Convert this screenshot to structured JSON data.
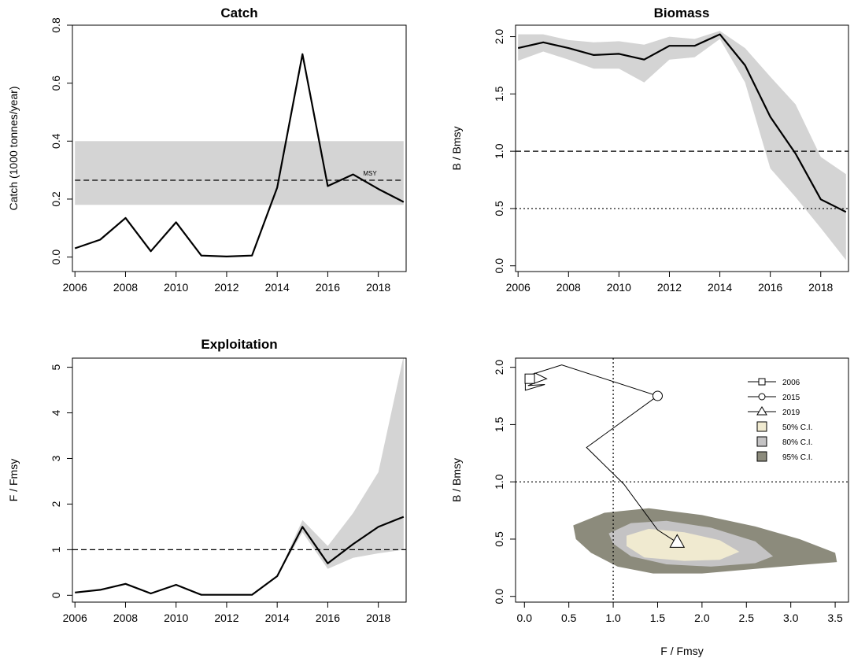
{
  "chart_data": [
    {
      "type": "line",
      "title": "Catch",
      "xlabel": "",
      "ylabel": "Catch (1000 tonnes/year)",
      "xlim": [
        2005.9,
        2019.1
      ],
      "ylim": [
        -0.05,
        0.8
      ],
      "xticks": [
        2006,
        2008,
        2010,
        2012,
        2014,
        2016,
        2018
      ],
      "yticks": [
        "0.0",
        "0.2",
        "0.4",
        "0.6",
        "0.8"
      ],
      "x": [
        2006,
        2007,
        2008,
        2009,
        2010,
        2011,
        2012,
        2013,
        2014,
        2015,
        2016,
        2017,
        2018,
        2019
      ],
      "values": [
        0.03,
        0.06,
        0.135,
        0.02,
        0.12,
        0.005,
        0.002,
        0.005,
        0.24,
        0.7,
        0.245,
        0.285,
        0.235,
        0.19
      ],
      "msy": {
        "label": "MSY",
        "value": 0.265,
        "lower": 0.18,
        "upper": 0.4,
        "label_x": 2017.4
      }
    },
    {
      "type": "line",
      "title": "Biomass",
      "xlabel": "",
      "ylabel": "B / Bmsy",
      "xlim": [
        2005.9,
        2019.1
      ],
      "ylim": [
        -0.05,
        2.1
      ],
      "xticks": [
        2006,
        2008,
        2010,
        2012,
        2014,
        2016,
        2018
      ],
      "yticks": [
        "0.0",
        "0.5",
        "1.0",
        "1.5",
        "2.0"
      ],
      "x": [
        2006,
        2007,
        2008,
        2009,
        2010,
        2011,
        2012,
        2013,
        2014,
        2015,
        2016,
        2017,
        2018,
        2019
      ],
      "values": [
        1.9,
        1.95,
        1.9,
        1.84,
        1.85,
        1.8,
        1.92,
        1.92,
        2.02,
        1.75,
        1.3,
        0.98,
        0.58,
        0.47
      ],
      "ci_lower": [
        1.79,
        1.87,
        1.8,
        1.72,
        1.72,
        1.6,
        1.8,
        1.82,
        1.98,
        1.6,
        0.85,
        0.6,
        0.33,
        0.05
      ],
      "ci_upper": [
        2.02,
        2.02,
        1.97,
        1.95,
        1.96,
        1.93,
        2.0,
        1.98,
        2.05,
        1.9,
        1.65,
        1.41,
        0.95,
        0.8
      ],
      "hlines": [
        {
          "value": 1.0,
          "style": "dashed"
        },
        {
          "value": 0.5,
          "style": "dotted"
        }
      ]
    },
    {
      "type": "line",
      "title": "Exploitation",
      "xlabel": "",
      "ylabel": "F / Fmsy",
      "xlim": [
        2005.9,
        2019.1
      ],
      "ylim": [
        -0.15,
        5.2
      ],
      "xticks": [
        2006,
        2008,
        2010,
        2012,
        2014,
        2016,
        2018
      ],
      "yticks": [
        "0",
        "1",
        "2",
        "3",
        "4",
        "5"
      ],
      "x": [
        2006,
        2007,
        2008,
        2009,
        2010,
        2011,
        2012,
        2013,
        2014,
        2015,
        2016,
        2017,
        2018,
        2019
      ],
      "values": [
        0.06,
        0.12,
        0.25,
        0.04,
        0.23,
        0.01,
        0.01,
        0.01,
        0.42,
        1.5,
        0.7,
        1.12,
        1.5,
        1.72
      ],
      "ci_lower": [
        0.06,
        0.12,
        0.25,
        0.04,
        0.23,
        0.01,
        0.01,
        0.01,
        0.42,
        1.38,
        0.58,
        0.82,
        0.92,
        1.0
      ],
      "ci_upper": [
        0.06,
        0.12,
        0.25,
        0.04,
        0.23,
        0.01,
        0.01,
        0.01,
        0.42,
        1.65,
        1.08,
        1.8,
        2.7,
        5.25
      ],
      "hlines": [
        {
          "value": 1.0,
          "style": "dashed"
        }
      ]
    },
    {
      "type": "scatter",
      "title": "",
      "xlabel": "F / Fmsy",
      "ylabel": "B / Bmsy",
      "xlim": [
        -0.1,
        3.65
      ],
      "ylim": [
        -0.05,
        2.08
      ],
      "xticks": [
        "0.0",
        "0.5",
        "1.0",
        "1.5",
        "2.0",
        "2.5",
        "3.0",
        "3.5"
      ],
      "yticks": [
        "0.0",
        "0.5",
        "1.0",
        "1.5",
        "2.0"
      ],
      "trajectory": {
        "f": [
          0.06,
          0.12,
          0.25,
          0.04,
          0.23,
          0.01,
          0.01,
          0.01,
          0.42,
          1.5,
          0.7,
          1.12,
          1.5,
          1.72
        ],
        "b": [
          1.9,
          1.95,
          1.9,
          1.84,
          1.85,
          1.8,
          1.92,
          1.92,
          2.02,
          1.75,
          1.3,
          0.98,
          0.58,
          0.47
        ]
      },
      "markers": [
        {
          "label": "2006",
          "shape": "square",
          "f": 0.06,
          "b": 1.9
        },
        {
          "label": "2015",
          "shape": "circle",
          "f": 1.5,
          "b": 1.75
        },
        {
          "label": "2019",
          "shape": "triangle",
          "f": 1.72,
          "b": 0.47
        }
      ],
      "reference_lines": {
        "vline": 1.0,
        "hline": 1.0
      },
      "ci_regions": [
        {
          "label": "95% C.I.",
          "color": "#8c8b7c",
          "f": [
            0.55,
            0.9,
            1.4,
            2.0,
            2.6,
            3.1,
            3.5,
            3.52,
            3.2,
            2.6,
            2.0,
            1.45,
            1.05,
            0.75,
            0.58
          ],
          "b": [
            0.62,
            0.73,
            0.77,
            0.71,
            0.61,
            0.5,
            0.38,
            0.3,
            0.28,
            0.24,
            0.2,
            0.2,
            0.26,
            0.38,
            0.5
          ]
        },
        {
          "label": "80% C.I.",
          "color": "#c4c3c4",
          "f": [
            0.95,
            1.2,
            1.6,
            2.1,
            2.6,
            2.8,
            2.6,
            2.1,
            1.6,
            1.2,
            1.0
          ],
          "b": [
            0.55,
            0.64,
            0.66,
            0.6,
            0.48,
            0.35,
            0.29,
            0.26,
            0.28,
            0.35,
            0.46
          ]
        },
        {
          "label": "50% C.I.",
          "color": "#f0ead0",
          "f": [
            1.15,
            1.4,
            1.8,
            2.2,
            2.42,
            2.2,
            1.8,
            1.35,
            1.15
          ],
          "b": [
            0.53,
            0.59,
            0.56,
            0.49,
            0.39,
            0.32,
            0.31,
            0.34,
            0.44
          ]
        }
      ],
      "legend": [
        {
          "label": "2006",
          "kind": "line-square"
        },
        {
          "label": "2015",
          "kind": "line-circle"
        },
        {
          "label": "2019",
          "kind": "line-triangle"
        },
        {
          "label": "50% C.I.",
          "kind": "fill",
          "color": "#f0ead0"
        },
        {
          "label": "80% C.I.",
          "kind": "fill",
          "color": "#c4c3c4"
        },
        {
          "label": "95% C.I.",
          "kind": "fill",
          "color": "#8c8b7c"
        }
      ],
      "legend_position": "top-right"
    }
  ]
}
